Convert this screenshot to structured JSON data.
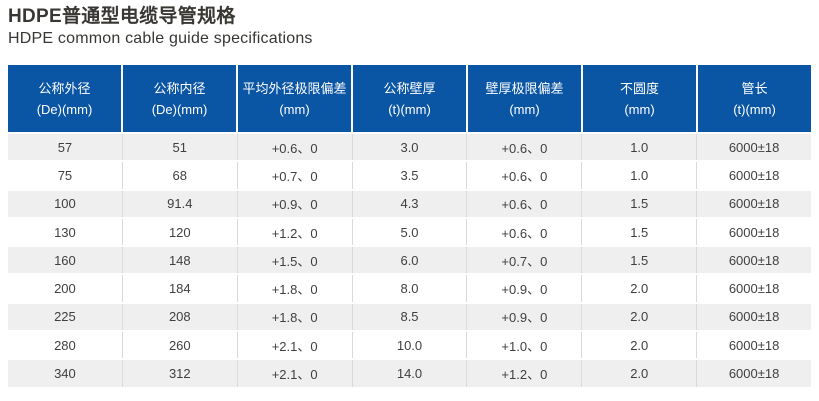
{
  "page": {
    "title": "HDPE普通型电缆导管规格",
    "subtitle": "HDPE common cable guide specifications"
  },
  "colors": {
    "header_bg": "#0a55a4",
    "header_text": "#ffffff",
    "row_alt_bg": "#efefef",
    "row_bg": "#ffffff",
    "cell_border": "#d9d9d9",
    "body_text": "#3f3f3f",
    "title_text": "#393733"
  },
  "table": {
    "columns": [
      {
        "title": "公称外径",
        "unit": "(De)(mm)"
      },
      {
        "title": "公称内径",
        "unit": "(De)(mm)"
      },
      {
        "title": "平均外径极限偏差",
        "unit": "(mm)"
      },
      {
        "title": "公称壁厚",
        "unit": "(t)(mm)"
      },
      {
        "title": "壁厚极限偏差",
        "unit": "(mm)"
      },
      {
        "title": "不圆度",
        "unit": "(mm)"
      },
      {
        "title": "管长",
        "unit": "(t)(mm)"
      }
    ],
    "rows": [
      [
        "57",
        "51",
        "+0.6、0",
        "3.0",
        "+0.6、0",
        "1.0",
        "6000±18"
      ],
      [
        "75",
        "68",
        "+0.7、0",
        "3.5",
        "+0.6、0",
        "1.0",
        "6000±18"
      ],
      [
        "100",
        "91.4",
        "+0.9、0",
        "4.3",
        "+0.6、0",
        "1.5",
        "6000±18"
      ],
      [
        "130",
        "120",
        "+1.2、0",
        "5.0",
        "+0.6、0",
        "1.5",
        "6000±18"
      ],
      [
        "160",
        "148",
        "+1.5、0",
        "6.0",
        "+0.7、0",
        "1.5",
        "6000±18"
      ],
      [
        "200",
        "184",
        "+1.8、0",
        "8.0",
        "+0.9、0",
        "2.0",
        "6000±18"
      ],
      [
        "225",
        "208",
        "+1.8、0",
        "8.5",
        "+0.9、0",
        "2.0",
        "6000±18"
      ],
      [
        "280",
        "260",
        "+2.1、0",
        "10.0",
        "+1.0、0",
        "2.0",
        "6000±18"
      ],
      [
        "340",
        "312",
        "+2.1、0",
        "14.0",
        "+1.2、0",
        "2.0",
        "6000±18"
      ]
    ]
  }
}
